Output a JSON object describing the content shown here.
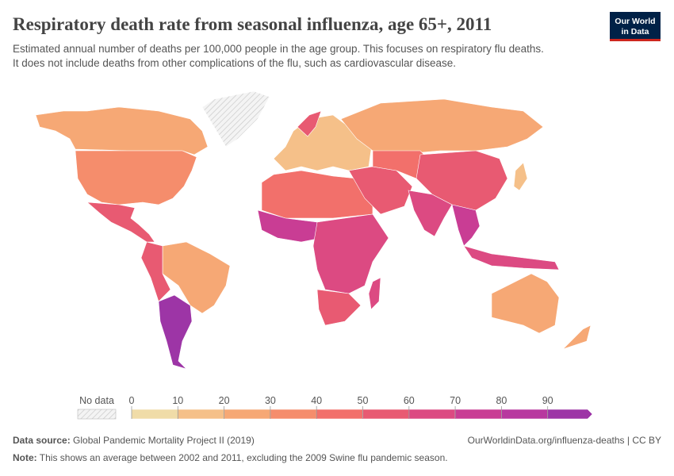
{
  "header": {
    "title": "Respiratory death rate from seasonal influenza, age 65+, 2011",
    "subtitle": [
      "Estimated annual number of deaths per 100,000 people in the age group. This focuses on respiratory flu deaths.",
      "It does not include deaths from other complications of the flu, such as cardiovascular disease."
    ],
    "logo": [
      "Our World",
      "in Data"
    ]
  },
  "legend": {
    "no_data": "No data",
    "ticks": [
      0,
      10,
      20,
      30,
      40,
      50,
      60,
      70,
      80,
      90
    ],
    "colors": [
      "#f0dca8",
      "#f5c089",
      "#f6a875",
      "#f58d6c",
      "#f2706b",
      "#e85a72",
      "#dc4a82",
      "#c93d94",
      "#b8389f",
      "#9d35a6"
    ]
  },
  "footer": {
    "source_label": "Data source:",
    "source": "Global Pandemic Mortality Project II (2019)",
    "url": "OurWorldinData.org/influenza-deaths | CC BY",
    "note_label": "Note:",
    "note": "This shows an average between 2002 and 2011, excluding the 2009 Swine flu pandemic season."
  }
}
